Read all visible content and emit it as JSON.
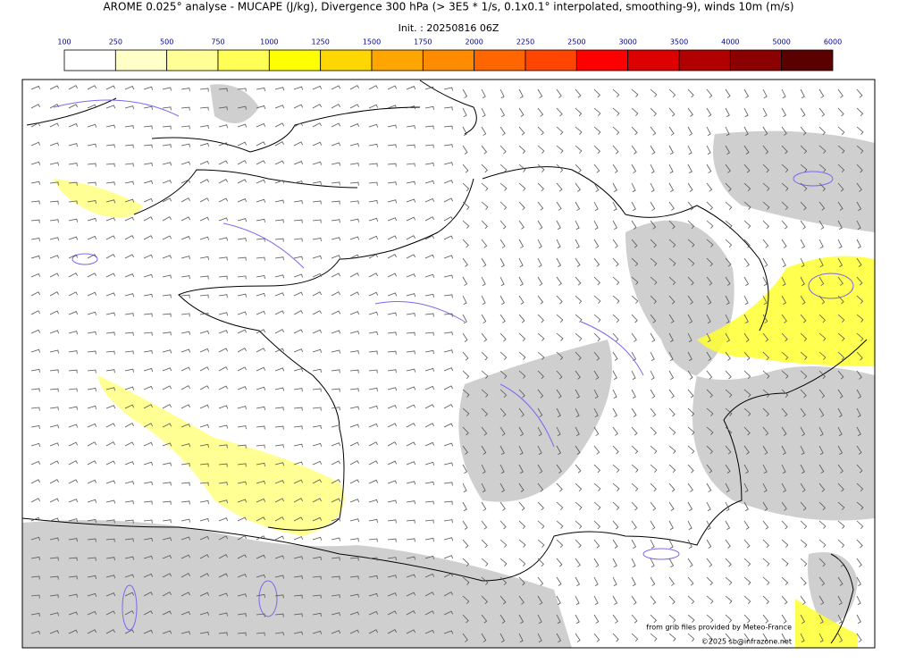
{
  "header": {
    "title": "AROME 0.025° analyse - MUCAPE (J/kg), Divergence 300 hPa (> 3E5 * 1/s, 0.1x0.1° interpolated, smoothing-9), winds 10m (m/s)",
    "init": "Init. : 20250816 06Z"
  },
  "colorbar": {
    "ticks": [
      100,
      250,
      500,
      750,
      1000,
      1250,
      1500,
      1750,
      2000,
      2250,
      2500,
      3000,
      3500,
      4000,
      5000,
      6000
    ],
    "colors": [
      "#ffffff",
      "#ffffc8",
      "#ffff96",
      "#ffff55",
      "#ffff00",
      "#ffd700",
      "#ffa500",
      "#ff8c00",
      "#ff6600",
      "#ff4500",
      "#ff0000",
      "#dd0000",
      "#b00000",
      "#8b0000",
      "#5a0000"
    ]
  },
  "credits": {
    "source": "from grib files provided by Meteo-France",
    "copyright": "©2025 sb@infrazone.net"
  }
}
